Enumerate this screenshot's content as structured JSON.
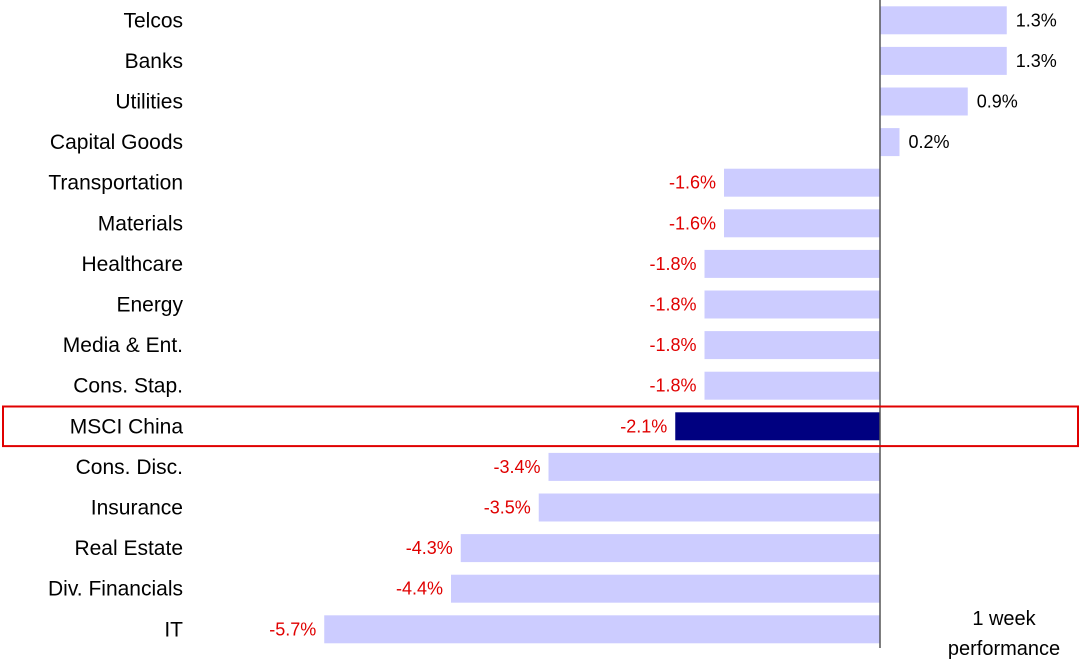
{
  "chart_data": {
    "type": "bar",
    "orientation": "horizontal",
    "categories": [
      "Telcos",
      "Banks",
      "Utilities",
      "Capital Goods",
      "Transportation",
      "Materials",
      "Healthcare",
      "Energy",
      "Media & Ent.",
      "Cons. Stap.",
      "MSCI China",
      "Cons. Disc.",
      "Insurance",
      "Real Estate",
      "Div. Financials",
      "IT"
    ],
    "values": [
      1.3,
      1.3,
      0.9,
      0.2,
      -1.6,
      -1.6,
      -1.8,
      -1.8,
      -1.8,
      -1.8,
      -2.1,
      -3.4,
      -3.5,
      -4.3,
      -4.4,
      -5.7
    ],
    "data_labels": [
      "1.3%",
      "1.3%",
      "0.9%",
      "0.2%",
      "-1.6%",
      "-1.6%",
      "-1.8%",
      "-1.8%",
      "-1.8%",
      "-1.8%",
      "-2.1%",
      "-3.4%",
      "-3.5%",
      "-4.3%",
      "-4.4%",
      "-5.7%"
    ],
    "highlight_category": "MSCI China",
    "note": [
      "1 week",
      "performance"
    ],
    "xlim": [
      -6.0,
      2.1
    ],
    "grid": false,
    "legend": "none"
  },
  "colors": {
    "bar": "#ccccff",
    "highlight_bar": "#000080",
    "highlight_box": "#e00000",
    "negative_label": "#e00000",
    "positive_label": "#000000",
    "axis": "#555555"
  }
}
